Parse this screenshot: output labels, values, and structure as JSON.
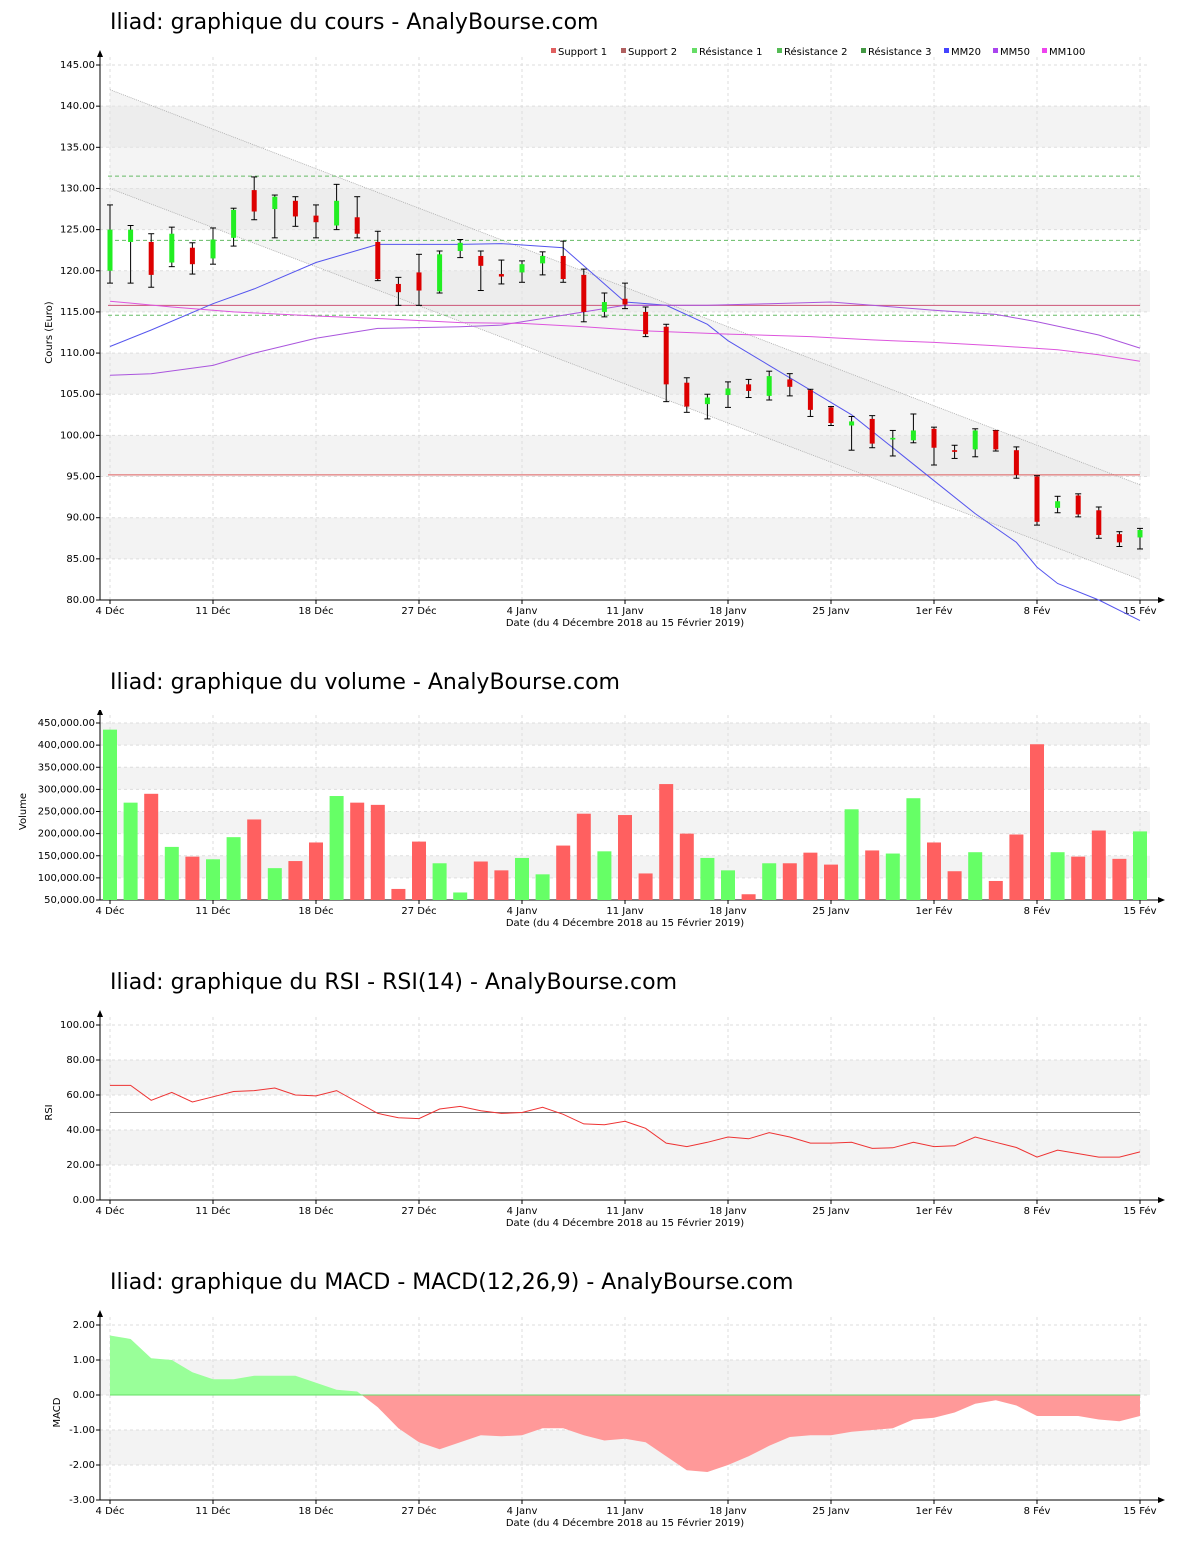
{
  "chart_data": [
    {
      "id": "price",
      "type": "candlestick",
      "title": "Iliad: graphique du cours - AnalyBourse.com",
      "ylabel": "Cours (Euro)",
      "xlabel": "Date (du 4 Décembre 2018 au 15 Février 2019)",
      "ylim": [
        80,
        145
      ],
      "yticks": [
        "80.00",
        "85.00",
        "90.00",
        "95.00",
        "100.00",
        "105.00",
        "110.00",
        "115.00",
        "120.00",
        "125.00",
        "130.00",
        "135.00",
        "140.00",
        "145.00"
      ],
      "xticks": [
        {
          "i": 0,
          "label": "4 Déc"
        },
        {
          "i": 5,
          "label": "11 Déc"
        },
        {
          "i": 10,
          "label": "18 Déc"
        },
        {
          "i": 15,
          "label": "27 Déc"
        },
        {
          "i": 20,
          "label": "4 Janv"
        },
        {
          "i": 25,
          "label": "11 Janv"
        },
        {
          "i": 30,
          "label": "18 Janv"
        },
        {
          "i": 35,
          "label": "25 Janv"
        },
        {
          "i": 40,
          "label": "1er Fév"
        },
        {
          "i": 45,
          "label": "8 Fév"
        },
        {
          "i": 50,
          "label": "15 Fév"
        }
      ],
      "legend": [
        {
          "name": "Support 1",
          "color": "#e06060"
        },
        {
          "name": "Support 2",
          "color": "#b06060"
        },
        {
          "name": "Résistance 1",
          "color": "#66dd66"
        },
        {
          "name": "Résistance 2",
          "color": "#55bb55"
        },
        {
          "name": "Résistance 3",
          "color": "#449944"
        },
        {
          "name": "MM20",
          "color": "#4444ff"
        },
        {
          "name": "MM50",
          "color": "#aa44ee"
        },
        {
          "name": "MM100",
          "color": "#ee44ee"
        }
      ],
      "levels": {
        "support1": 95.2,
        "support2": 115.8,
        "resistance1": 114.6,
        "resistance2": 123.7,
        "resistance3": 131.5
      },
      "channel": {
        "upper": {
          "start": 142,
          "end": 94
        },
        "lower": {
          "start": 130,
          "end": 82.5
        }
      },
      "candles": [
        {
          "o": 120,
          "c": 125,
          "h": 128,
          "l": 118.5
        },
        {
          "o": 123.5,
          "c": 125,
          "h": 125.5,
          "l": 118.5
        },
        {
          "o": 123.5,
          "c": 119.5,
          "h": 124.5,
          "l": 118
        },
        {
          "o": 121,
          "c": 124.5,
          "h": 125.3,
          "l": 120.5
        },
        {
          "o": 122.8,
          "c": 120.8,
          "h": 123.4,
          "l": 119.6
        },
        {
          "o": 121.5,
          "c": 123.8,
          "h": 125.2,
          "l": 120.8
        },
        {
          "o": 124,
          "c": 127.4,
          "h": 127.6,
          "l": 123
        },
        {
          "o": 129.8,
          "c": 127.2,
          "h": 131.4,
          "l": 126.2
        },
        {
          "o": 127.5,
          "c": 129,
          "h": 129.2,
          "l": 124
        },
        {
          "o": 128.5,
          "c": 126.6,
          "h": 129,
          "l": 125.4
        },
        {
          "o": 126.7,
          "c": 125.9,
          "h": 128,
          "l": 124
        },
        {
          "o": 125.5,
          "c": 128.5,
          "h": 130.5,
          "l": 125
        },
        {
          "o": 126.5,
          "c": 124.5,
          "h": 129,
          "l": 124
        },
        {
          "o": 123.5,
          "c": 119,
          "h": 124.8,
          "l": 118.8
        },
        {
          "o": 118.4,
          "c": 117.4,
          "h": 119.2,
          "l": 115.8
        },
        {
          "o": 119.8,
          "c": 117.6,
          "h": 122,
          "l": 115.8
        },
        {
          "o": 117.5,
          "c": 122,
          "h": 122.4,
          "l": 117.3
        },
        {
          "o": 122.4,
          "c": 123.4,
          "h": 123.8,
          "l": 121.6
        },
        {
          "o": 121.8,
          "c": 120.6,
          "h": 122.4,
          "l": 117.6
        },
        {
          "o": 119.6,
          "c": 119.3,
          "h": 121.3,
          "l": 118.4
        },
        {
          "o": 119.8,
          "c": 120.8,
          "h": 121.2,
          "l": 118.6
        },
        {
          "o": 120.9,
          "c": 121.8,
          "h": 122.3,
          "l": 119.5
        },
        {
          "o": 121.8,
          "c": 119,
          "h": 123.6,
          "l": 118.6
        },
        {
          "o": 119.5,
          "c": 115,
          "h": 120.2,
          "l": 113.8
        },
        {
          "o": 115,
          "c": 116.2,
          "h": 117.3,
          "l": 114.4
        },
        {
          "o": 116.6,
          "c": 115.9,
          "h": 118.5,
          "l": 115.4
        },
        {
          "o": 115,
          "c": 112.3,
          "h": 115.6,
          "l": 112
        },
        {
          "o": 113.2,
          "c": 106.2,
          "h": 113.5,
          "l": 104.1
        },
        {
          "o": 106.4,
          "c": 103.5,
          "h": 107,
          "l": 102.8
        },
        {
          "o": 103.8,
          "c": 104.6,
          "h": 105,
          "l": 102
        },
        {
          "o": 104.9,
          "c": 105.7,
          "h": 106.5,
          "l": 103.4
        },
        {
          "o": 106.2,
          "c": 105.4,
          "h": 106.8,
          "l": 104.6
        },
        {
          "o": 104.8,
          "c": 107.2,
          "h": 107.8,
          "l": 104.3
        },
        {
          "o": 106.8,
          "c": 105.9,
          "h": 107.5,
          "l": 104.8
        },
        {
          "o": 105.5,
          "c": 103.1,
          "h": 105.6,
          "l": 102.3
        },
        {
          "o": 103.4,
          "c": 101.5,
          "h": 103.5,
          "l": 101.2
        },
        {
          "o": 101.2,
          "c": 101.7,
          "h": 102.3,
          "l": 98.2
        },
        {
          "o": 102,
          "c": 99,
          "h": 102.4,
          "l": 98.5
        },
        {
          "o": 99.5,
          "c": 99.7,
          "h": 100.6,
          "l": 97.5
        },
        {
          "o": 99.4,
          "c": 100.6,
          "h": 102.6,
          "l": 99.1
        },
        {
          "o": 100.8,
          "c": 98.5,
          "h": 101,
          "l": 96.4
        },
        {
          "o": 98.2,
          "c": 98,
          "h": 98.8,
          "l": 97.2
        },
        {
          "o": 98.3,
          "c": 100.6,
          "h": 100.8,
          "l": 97.4
        },
        {
          "o": 100.6,
          "c": 98.3,
          "h": 100.6,
          "l": 98.1
        },
        {
          "o": 98.2,
          "c": 95.2,
          "h": 98.6,
          "l": 94.8
        },
        {
          "o": 95,
          "c": 89.5,
          "h": 95.1,
          "l": 89.1
        },
        {
          "o": 91.2,
          "c": 92,
          "h": 92.6,
          "l": 90.6
        },
        {
          "o": 92.7,
          "c": 90.4,
          "h": 92.9,
          "l": 90.1
        },
        {
          "o": 90.9,
          "c": 87.9,
          "h": 91.3,
          "l": 87.5
        },
        {
          "o": 88,
          "c": 87,
          "h": 88.3,
          "l": 86.5
        },
        {
          "o": 87.6,
          "c": 88.5,
          "h": 88.7,
          "l": 86.2
        }
      ],
      "ma": {
        "MM20": [
          [
            0,
            110.8
          ],
          [
            2,
            112.8
          ],
          [
            5,
            116
          ],
          [
            7,
            117.8
          ],
          [
            10,
            121
          ],
          [
            13,
            123.2
          ],
          [
            17,
            123.2
          ],
          [
            19,
            123.3
          ],
          [
            22,
            122.8
          ],
          [
            25,
            116.2
          ],
          [
            27,
            115.8
          ],
          [
            29,
            113.5
          ],
          [
            30,
            111.5
          ],
          [
            32,
            108.5
          ],
          [
            34,
            105.5
          ],
          [
            36,
            102.5
          ],
          [
            38,
            98.5
          ],
          [
            40,
            94.5
          ],
          [
            42,
            90.5
          ],
          [
            44,
            87
          ],
          [
            45,
            84
          ],
          [
            46,
            82
          ],
          [
            48,
            80
          ],
          [
            50,
            77.5
          ]
        ],
        "MM50": [
          [
            0,
            107.3
          ],
          [
            2,
            107.5
          ],
          [
            5,
            108.5
          ],
          [
            7,
            110
          ],
          [
            10,
            111.8
          ],
          [
            13,
            113
          ],
          [
            17,
            113.2
          ],
          [
            19,
            113.4
          ],
          [
            22,
            114.6
          ],
          [
            25,
            115.8
          ],
          [
            27,
            115.8
          ],
          [
            29,
            115.8
          ],
          [
            32,
            116
          ],
          [
            35,
            116.2
          ],
          [
            37,
            115.8
          ],
          [
            40,
            115.2
          ],
          [
            43,
            114.7
          ],
          [
            45,
            113.8
          ],
          [
            48,
            112.2
          ],
          [
            50,
            110.6
          ]
        ],
        "MM100": [
          [
            0,
            116.3
          ],
          [
            3,
            115.6
          ],
          [
            6,
            115
          ],
          [
            10,
            114.5
          ],
          [
            13,
            114.2
          ],
          [
            17,
            113.7
          ],
          [
            20,
            113.6
          ],
          [
            23,
            113.2
          ],
          [
            26,
            112.7
          ],
          [
            30,
            112.3
          ],
          [
            34,
            112
          ],
          [
            37,
            111.6
          ],
          [
            40,
            111.3
          ],
          [
            43,
            110.9
          ],
          [
            46,
            110.4
          ],
          [
            48,
            109.8
          ],
          [
            50,
            109
          ]
        ]
      }
    },
    {
      "id": "volume",
      "type": "bar",
      "title": "Iliad: graphique du volume - AnalyBourse.com",
      "ylabel": "Volume",
      "xlabel": "Date (du 4 Décembre 2018 au 15 Février 2019)",
      "ylim": [
        50000,
        450000
      ],
      "yticks": [
        "50,000.00",
        "100,000.00",
        "150,000.00",
        "200,000.00",
        "250,000.00",
        "300,000.00",
        "350,000.00",
        "400,000.00",
        "450,000.00"
      ],
      "values": [
        435000,
        270000,
        290000,
        170000,
        148000,
        142000,
        192000,
        232000,
        122000,
        138000,
        180000,
        285000,
        270000,
        265000,
        75000,
        182000,
        133000,
        67000,
        137000,
        117000,
        145000,
        108000,
        173000,
        245000,
        160000,
        242000,
        110000,
        312000,
        200000,
        145000,
        117000,
        63000,
        133000,
        133000,
        157000,
        130000,
        255000,
        162000,
        155000,
        280000,
        180000,
        115000,
        158000,
        93000,
        198000,
        402000,
        158000,
        148000,
        207000,
        143000,
        205000
      ]
    },
    {
      "id": "rsi",
      "type": "line",
      "title": "Iliad: graphique du RSI - RSI(14) - AnalyBourse.com",
      "ylabel": "RSI",
      "xlabel": "Date (du 4 Décembre 2018 au 15 Février 2019)",
      "ylim": [
        0,
        100
      ],
      "yticks": [
        "0.00",
        "20.00",
        "40.00",
        "60.00",
        "80.00",
        "100.00"
      ],
      "midline": 50,
      "values": [
        65.5,
        65.5,
        57,
        61.5,
        56,
        59,
        62,
        62.5,
        64,
        60,
        59.5,
        62.5,
        56,
        49.5,
        47,
        46.5,
        52,
        53.5,
        51,
        49.5,
        50,
        53,
        49,
        43.5,
        43,
        45,
        41,
        32.5,
        30.5,
        33,
        36,
        35,
        38.5,
        36,
        32.5,
        32.5,
        33,
        29.5,
        29.8,
        33,
        30.5,
        31,
        36,
        33,
        30,
        24.5,
        28.5,
        26.5,
        24.5,
        24.5,
        27.5
      ]
    },
    {
      "id": "macd",
      "type": "area",
      "title": "Iliad: graphique du MACD - MACD(12,26,9) - AnalyBourse.com",
      "ylabel": "MACD",
      "xlabel": "Date (du 4 Décembre 2018 au 15 Février 2019)",
      "ylim": [
        -3,
        2
      ],
      "yticks": [
        "-3.00",
        "-2.00",
        "-1.00",
        "0.00",
        "1.00",
        "2.00"
      ],
      "values": [
        1.7,
        1.6,
        1.05,
        1.0,
        0.65,
        0.45,
        0.45,
        0.55,
        0.55,
        0.55,
        0.35,
        0.15,
        0.1,
        -0.35,
        -0.95,
        -1.35,
        -1.55,
        -1.35,
        -1.15,
        -1.18,
        -1.15,
        -0.95,
        -0.95,
        -1.15,
        -1.3,
        -1.25,
        -1.35,
        -1.75,
        -2.15,
        -2.2,
        -2.0,
        -1.75,
        -1.45,
        -1.2,
        -1.15,
        -1.15,
        -1.05,
        -1.0,
        -0.95,
        -0.7,
        -0.65,
        -0.5,
        -0.25,
        -0.15,
        -0.3,
        -0.6,
        -0.6,
        -0.6,
        -0.7,
        -0.75,
        -0.6
      ]
    }
  ]
}
